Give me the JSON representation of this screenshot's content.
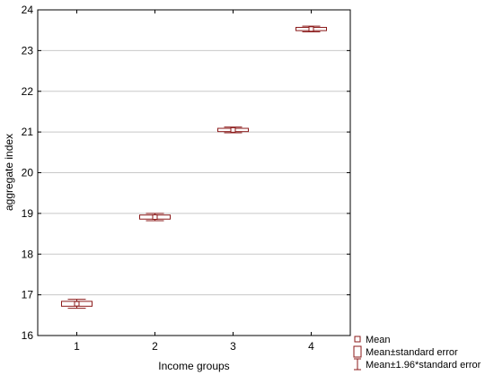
{
  "chart_data": {
    "type": "box",
    "xlabel": "Income groups",
    "ylabel": "aggregate index",
    "categories": [
      "1",
      "2",
      "3",
      "4"
    ],
    "ylim": [
      16,
      24
    ],
    "yticks": [
      16,
      17,
      18,
      19,
      20,
      21,
      22,
      23,
      24
    ],
    "grid": true,
    "legend_position": "bottom-right",
    "legend": [
      {
        "symbol": "mean-marker",
        "label": "Mean"
      },
      {
        "symbol": "se-box",
        "label": "Mean±standard error"
      },
      {
        "symbol": "ci-whisker",
        "label": "Mean±1.96*standard error"
      }
    ],
    "series": [
      {
        "mean": [
          16.78,
          18.91,
          21.05,
          23.53
        ],
        "se_low": [
          16.72,
          18.86,
          21.01,
          23.49
        ],
        "se_high": [
          16.84,
          18.96,
          21.09,
          23.57
        ],
        "ci_low": [
          16.67,
          18.82,
          20.98,
          23.46
        ],
        "ci_high": [
          16.89,
          19.0,
          21.12,
          23.6
        ]
      }
    ],
    "color": "#8b1a1a"
  }
}
